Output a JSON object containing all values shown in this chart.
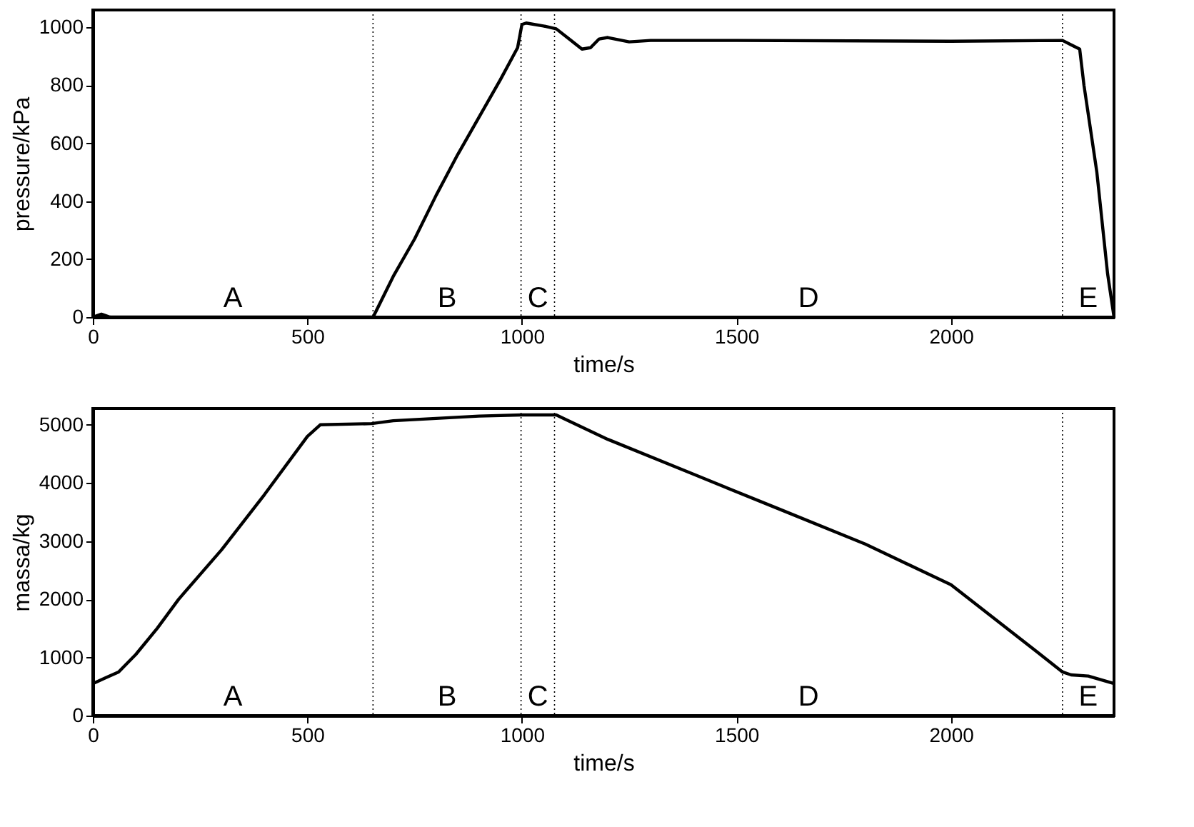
{
  "chart_data": [
    {
      "type": "line",
      "xlabel": "time/s",
      "ylabel": "pressure/kPa",
      "xlim": [
        0,
        2380
      ],
      "xticks": [
        0,
        500,
        1000,
        1500,
        2000
      ],
      "ylim": [
        0,
        1060
      ],
      "yticks": [
        0,
        200,
        400,
        600,
        800,
        1000
      ],
      "grid": false,
      "line_style": "solid",
      "series": [
        {
          "color": "#000000",
          "x": [
            0,
            20,
            40,
            653,
            660,
            700,
            750,
            800,
            850,
            900,
            950,
            990,
            1000,
            1010,
            1050,
            1080,
            1110,
            1140,
            1160,
            1180,
            1200,
            1250,
            1300,
            1500,
            2000,
            2260,
            2280,
            2300,
            2310,
            2340,
            2365,
            2380
          ],
          "values": [
            0,
            10,
            0,
            0,
            20,
            140,
            270,
            420,
            560,
            690,
            820,
            930,
            1010,
            1015,
            1005,
            995,
            960,
            925,
            930,
            960,
            965,
            950,
            955,
            955,
            952,
            955,
            940,
            925,
            800,
            500,
            150,
            0
          ]
        }
      ],
      "ref_lines": [
        {
          "axis": "x",
          "value": 653,
          "line_style": "dotted",
          "color": "#000000"
        },
        {
          "axis": "x",
          "value": 998,
          "line_style": "dotted",
          "color": "#000000"
        },
        {
          "axis": "x",
          "value": 1076,
          "line_style": "dotted",
          "color": "#000000"
        },
        {
          "axis": "x",
          "value": 2260,
          "line_style": "dotted",
          "color": "#000000"
        }
      ],
      "annotations": [
        "A",
        "B",
        "C",
        "D",
        "E"
      ]
    },
    {
      "type": "line",
      "xlabel": "time/s",
      "ylabel": "massa/kg",
      "xlim": [
        0,
        2380
      ],
      "xticks": [
        0,
        500,
        1000,
        1500,
        2000
      ],
      "ylim": [
        0,
        5280
      ],
      "yticks": [
        0,
        1000,
        2000,
        3000,
        4000,
        5000
      ],
      "grid": false,
      "line_style": "solid",
      "series": [
        {
          "color": "#000000",
          "x": [
            0,
            30,
            60,
            100,
            150,
            200,
            300,
            400,
            500,
            530,
            650,
            700,
            800,
            900,
            1000,
            1080,
            1100,
            1200,
            1400,
            1600,
            1800,
            2000,
            2200,
            2260,
            2280,
            2320,
            2380
          ],
          "values": [
            550,
            650,
            750,
            1050,
            1500,
            2000,
            2850,
            3800,
            4800,
            5000,
            5020,
            5070,
            5110,
            5150,
            5170,
            5170,
            5100,
            4750,
            4150,
            3550,
            2950,
            2250,
            1100,
            750,
            700,
            680,
            550
          ]
        }
      ],
      "ref_lines": [
        {
          "axis": "x",
          "value": 653,
          "line_style": "dotted",
          "color": "#000000"
        },
        {
          "axis": "x",
          "value": 998,
          "line_style": "dotted",
          "color": "#000000"
        },
        {
          "axis": "x",
          "value": 1076,
          "line_style": "dotted",
          "color": "#000000"
        },
        {
          "axis": "x",
          "value": 2260,
          "line_style": "dotted",
          "color": "#000000"
        }
      ],
      "annotations": [
        "A",
        "B",
        "C",
        "D",
        "E"
      ]
    }
  ]
}
